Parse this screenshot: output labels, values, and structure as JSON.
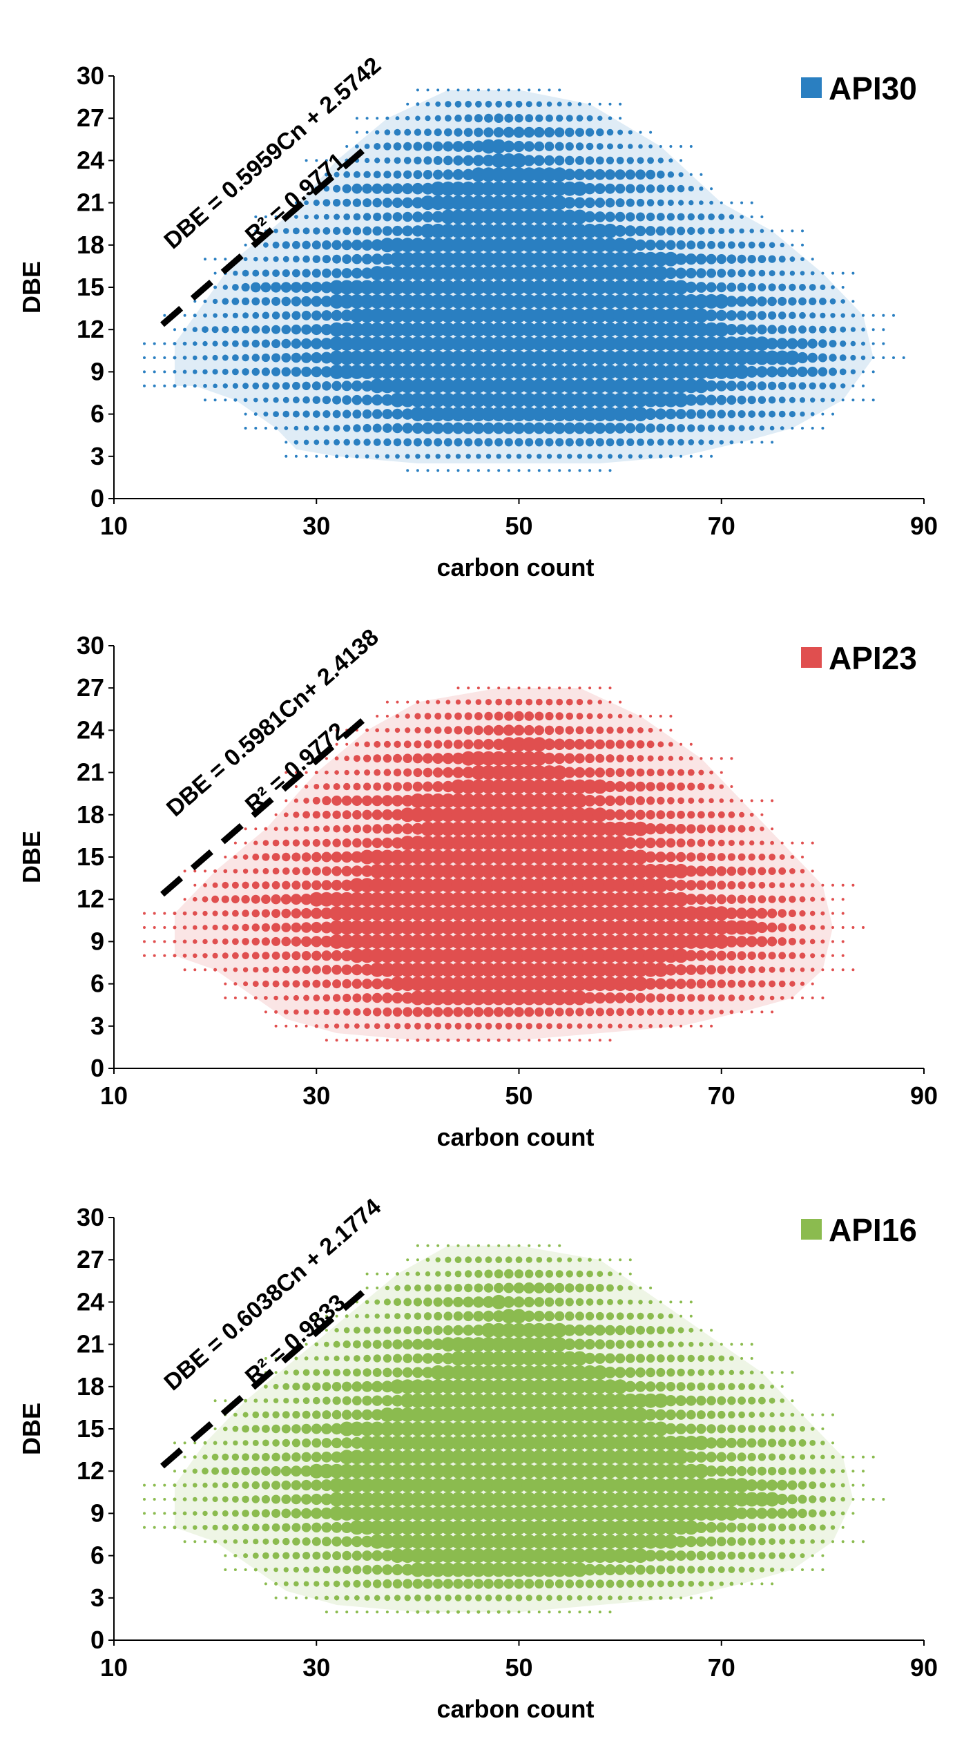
{
  "chart_data": [
    {
      "type": "scatter",
      "series_name": "API30",
      "color": "#2a7fc1",
      "xlabel": "carbon count",
      "ylabel": "DBE",
      "xlim": [
        10,
        90
      ],
      "ylim": [
        0,
        30
      ],
      "xticks": [
        "10",
        "30",
        "50",
        "70",
        "90"
      ],
      "yticks": [
        "0",
        "3",
        "6",
        "9",
        "12",
        "15",
        "18",
        "21",
        "24",
        "27",
        "30"
      ],
      "equation": "DBE = 0.5959Cn + 2.5742",
      "r_squared": "R² = 0.9771",
      "fit": {
        "slope": 0.5959,
        "intercept": 2.5742,
        "r2": 0.9771
      },
      "envelope": [
        [
          16,
          8
        ],
        [
          18,
          8
        ],
        [
          22,
          7
        ],
        [
          26,
          5
        ],
        [
          28,
          3.5
        ],
        [
          32,
          3
        ],
        [
          40,
          2.5
        ],
        [
          50,
          2.5
        ],
        [
          58,
          2.5
        ],
        [
          66,
          3
        ],
        [
          72,
          4
        ],
        [
          77,
          5
        ],
        [
          82,
          7
        ],
        [
          85,
          10
        ],
        [
          84,
          13
        ],
        [
          80,
          16
        ],
        [
          75,
          19
        ],
        [
          70,
          21
        ],
        [
          64,
          25
        ],
        [
          57,
          28
        ],
        [
          50,
          29
        ],
        [
          43,
          29
        ],
        [
          37,
          27
        ],
        [
          32,
          24
        ],
        [
          27,
          20
        ],
        [
          22,
          17
        ],
        [
          18,
          13
        ],
        [
          16,
          11
        ]
      ]
    },
    {
      "type": "scatter",
      "series_name": "API23",
      "color": "#e04f4f",
      "xlabel": "carbon count",
      "ylabel": "DBE",
      "xlim": [
        10,
        90
      ],
      "ylim": [
        0,
        30
      ],
      "xticks": [
        "10",
        "30",
        "50",
        "70",
        "90"
      ],
      "yticks": [
        "0",
        "3",
        "6",
        "9",
        "12",
        "15",
        "18",
        "21",
        "24",
        "27",
        "30"
      ],
      "equation": "DBE = 0.5981Cn+ 2.4138",
      "r_squared": "R² = 0.9772",
      "fit": {
        "slope": 0.5981,
        "intercept": 2.4138,
        "r2": 0.9772
      },
      "envelope": [
        [
          16,
          8
        ],
        [
          20,
          7
        ],
        [
          24,
          5
        ],
        [
          27,
          3.5
        ],
        [
          32,
          2.5
        ],
        [
          40,
          2
        ],
        [
          50,
          2
        ],
        [
          58,
          2.5
        ],
        [
          66,
          3
        ],
        [
          72,
          4
        ],
        [
          77,
          5
        ],
        [
          80,
          7
        ],
        [
          81,
          10
        ],
        [
          80,
          13
        ],
        [
          76,
          16
        ],
        [
          72,
          19
        ],
        [
          68,
          22
        ],
        [
          62,
          25
        ],
        [
          56,
          27
        ],
        [
          48,
          27
        ],
        [
          40,
          26
        ],
        [
          35,
          24
        ],
        [
          30,
          21
        ],
        [
          25,
          17
        ],
        [
          20,
          14
        ],
        [
          16,
          11
        ]
      ]
    },
    {
      "type": "scatter",
      "series_name": "API16",
      "color": "#8bbb4f",
      "xlabel": "carbon count",
      "ylabel": "DBE",
      "xlim": [
        10,
        90
      ],
      "ylim": [
        0,
        30
      ],
      "xticks": [
        "10",
        "30",
        "50",
        "70",
        "90"
      ],
      "yticks": [
        "0",
        "3",
        "6",
        "9",
        "12",
        "15",
        "18",
        "21",
        "24",
        "27",
        "30"
      ],
      "equation": "DBE = 0.6038Cn + 2.1774",
      "r_squared": "R² = 0.9833",
      "fit": {
        "slope": 0.6038,
        "intercept": 2.1774,
        "r2": 0.9833
      },
      "envelope": [
        [
          16,
          8
        ],
        [
          20,
          7
        ],
        [
          24,
          5
        ],
        [
          27,
          3.5
        ],
        [
          32,
          2.5
        ],
        [
          40,
          2
        ],
        [
          50,
          2
        ],
        [
          58,
          2.5
        ],
        [
          66,
          3
        ],
        [
          72,
          4
        ],
        [
          77,
          5
        ],
        [
          81,
          7
        ],
        [
          83,
          10
        ],
        [
          82,
          13
        ],
        [
          78,
          16
        ],
        [
          74,
          19
        ],
        [
          70,
          21
        ],
        [
          64,
          24
        ],
        [
          58,
          27
        ],
        [
          50,
          28
        ],
        [
          43,
          28
        ],
        [
          38,
          26
        ],
        [
          33,
          23
        ],
        [
          28,
          20
        ],
        [
          23,
          17
        ],
        [
          19,
          14
        ],
        [
          16,
          11
        ]
      ]
    }
  ]
}
